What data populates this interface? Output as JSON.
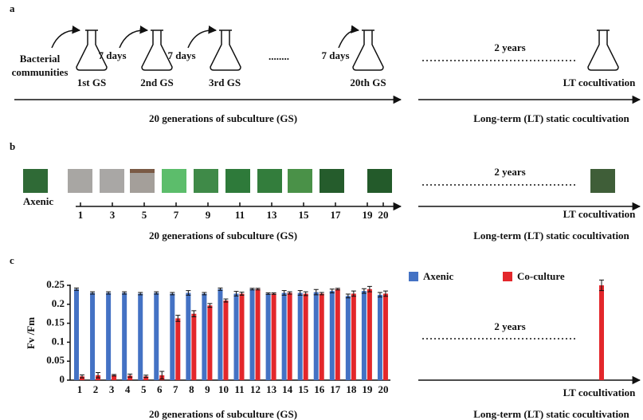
{
  "panel_a": {
    "label": "a",
    "source": [
      "Bacterial",
      "communities"
    ],
    "intervals": [
      "7 days",
      "7 days",
      "7 days"
    ],
    "flasks": [
      "1st GS",
      "2nd GS",
      "3rd GS",
      "20th GS"
    ],
    "ellipsis": "........",
    "gap": "2 years",
    "lt_flask": "LT cocultivation",
    "axis_left": "20 generations of subculture (GS)",
    "axis_right": "Long-term (LT) static cocultivation"
  },
  "panel_b": {
    "label": "b",
    "sample": "Axenic",
    "ticks": [
      1,
      3,
      5,
      7,
      9,
      11,
      13,
      15,
      17,
      19,
      20
    ],
    "gap": "2 years",
    "lt": "LT cocultivation",
    "axis_left": "20 generations of subculture (GS)",
    "axis_right": "Long-term (LT) static cocultivation"
  },
  "chart_data": {
    "type": "bar",
    "panel_label": "c",
    "y_label": "Fv /Fm",
    "categories": [
      1,
      2,
      3,
      4,
      5,
      6,
      7,
      8,
      9,
      10,
      11,
      12,
      13,
      14,
      15,
      16,
      17,
      18,
      19,
      20
    ],
    "series": [
      {
        "name": "Axenic",
        "color": "#4472c4",
        "values": [
          0.24,
          0.23,
          0.23,
          0.23,
          0.228,
          0.23,
          0.228,
          0.23,
          0.228,
          0.24,
          0.228,
          0.24,
          0.228,
          0.23,
          0.23,
          0.232,
          0.235,
          0.222,
          0.235,
          0.225
        ],
        "errors": [
          0.003,
          0.003,
          0.003,
          0.003,
          0.003,
          0.003,
          0.003,
          0.006,
          0.003,
          0.003,
          0.006,
          0.002,
          0.002,
          0.006,
          0.006,
          0.007,
          0.005,
          0.005,
          0.006,
          0.006
        ]
      },
      {
        "name": "Co-culture",
        "color": "#e3272b",
        "values": [
          0.01,
          0.013,
          0.013,
          0.012,
          0.01,
          0.013,
          0.163,
          0.175,
          0.197,
          0.21,
          0.228,
          0.24,
          0.228,
          0.23,
          0.228,
          0.228,
          0.24,
          0.228,
          0.24,
          0.228
        ],
        "errors": [
          0.004,
          0.007,
          0.002,
          0.004,
          0.003,
          0.01,
          0.008,
          0.008,
          0.005,
          0.004,
          0.004,
          0.002,
          0.002,
          0.003,
          0.005,
          0.003,
          0.002,
          0.007,
          0.007,
          0.007
        ]
      }
    ],
    "lt_category": "LT cocultivation",
    "lt_value": 0.25,
    "lt_error": 0.014,
    "gap": "2 years",
    "x_label": "20 generations of subculture (GS)",
    "x_label_right": "Long-term (LT) static cocultivation",
    "ylim": [
      0,
      0.25
    ],
    "yticks": [
      0,
      0.05,
      0.1,
      0.15,
      0.2,
      0.25
    ]
  }
}
